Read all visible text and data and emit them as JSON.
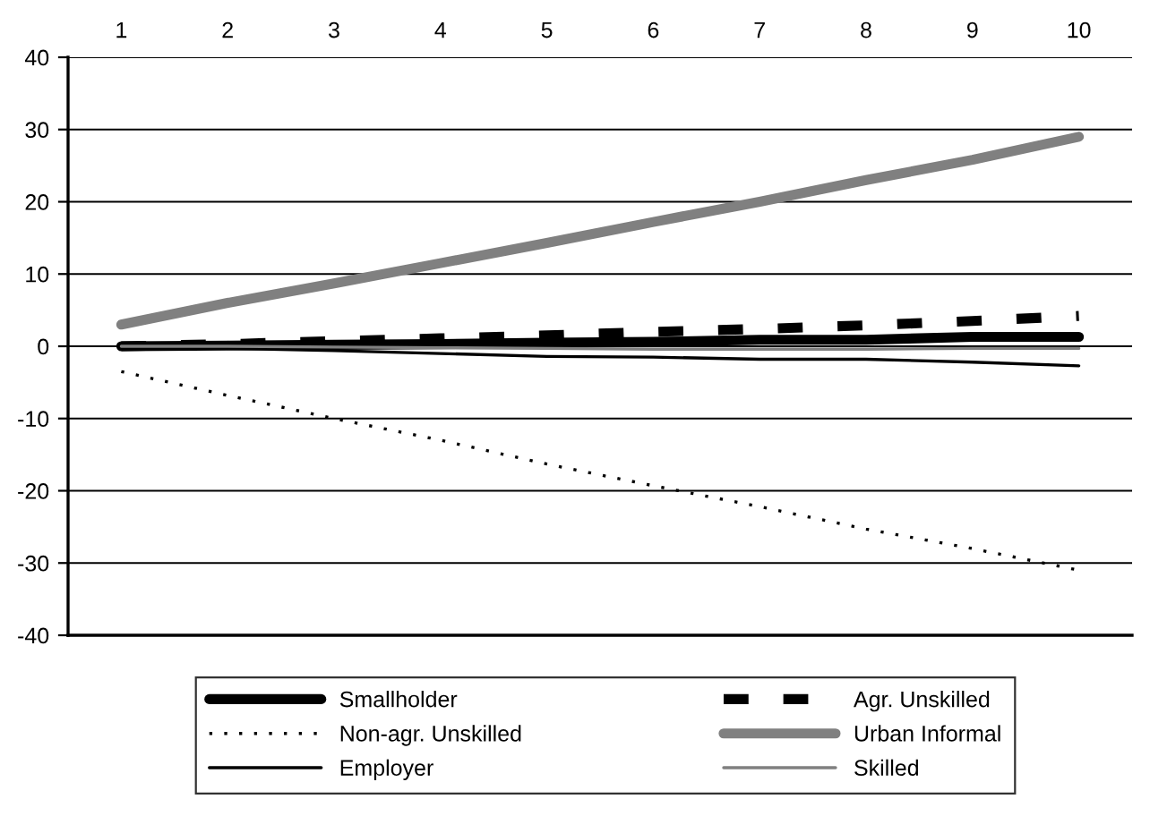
{
  "chart_data": {
    "type": "line",
    "categories": [
      "1",
      "2",
      "3",
      "4",
      "5",
      "6",
      "7",
      "8",
      "9",
      "10"
    ],
    "series": [
      {
        "name": "Smallholder",
        "color": "#000000",
        "line_style": "solid",
        "values": [
          0,
          0.1,
          0.2,
          0.3,
          0.5,
          0.6,
          0.9,
          0.9,
          1.3,
          1.3
        ]
      },
      {
        "name": "Agr. Unskilled",
        "color": "#000000",
        "line_style": "dashed",
        "values": [
          0,
          0.3,
          0.7,
          1.1,
          1.5,
          2,
          2.4,
          2.9,
          3.5,
          4.2
        ]
      },
      {
        "name": "Non-agr. Unskilled",
        "color": "#000000",
        "line_style": "dotted",
        "values": [
          -3.5,
          -6.8,
          -10,
          -13,
          -16.3,
          -19.3,
          -22.2,
          -25.3,
          -28,
          -31
        ]
      },
      {
        "name": "Urban Informal",
        "color": "#808080",
        "line_style": "solid",
        "values": [
          3,
          6,
          8.7,
          11.5,
          14.3,
          17.2,
          20,
          23,
          25.8,
          29
        ]
      },
      {
        "name": "Employer",
        "color": "#000000",
        "line_style": "solid",
        "values": [
          0,
          -0.3,
          -0.6,
          -1,
          -1.4,
          -1.5,
          -1.8,
          -1.8,
          -2.2,
          -2.7
        ]
      },
      {
        "name": "Skilled",
        "color": "#808080",
        "line_style": "solid",
        "values": [
          0,
          0,
          -0.1,
          -0.2,
          -0.3,
          -0.4,
          -0.4,
          -0.4,
          -0.3,
          -0.3
        ]
      }
    ],
    "ylim": [
      -40,
      40
    ],
    "yticks": [
      -40,
      -30,
      -20,
      -10,
      0,
      10,
      20,
      30,
      40
    ],
    "grid": "y",
    "legend": "bottom",
    "marker": "none"
  }
}
